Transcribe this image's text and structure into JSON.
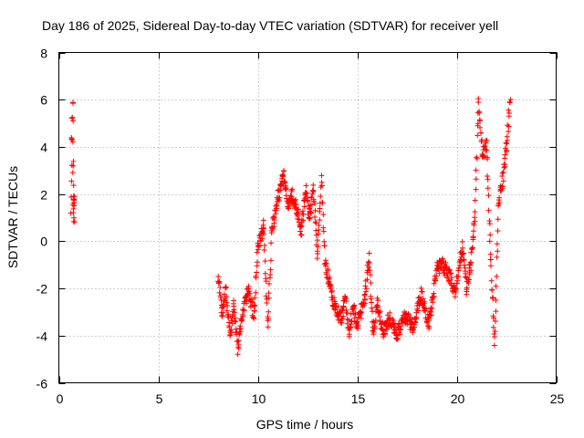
{
  "chart_data": {
    "type": "scatter",
    "title": "Day 186 of 2025, Sidereal Day-to-day VTEC variation (SDTVAR) for receiver yell",
    "xlabel": "GPS time / hours",
    "ylabel": "SDTVAR / TECUs",
    "xlim": [
      0,
      25
    ],
    "ylim": [
      -6,
      8
    ],
    "xticks": [
      0,
      5,
      10,
      15,
      20,
      25
    ],
    "yticks": [
      -6,
      -4,
      -2,
      0,
      2,
      4,
      6,
      8
    ],
    "xtick_labels": [
      "0",
      "5",
      "10",
      "15",
      "20",
      "25"
    ],
    "ytick_labels": [
      "-6",
      "-4",
      "-2",
      "0",
      "2",
      "4",
      "6",
      "8"
    ],
    "grid": true,
    "marker": "+",
    "series_color": "#ff0000",
    "series": [
      {
        "name": "SDTVAR",
        "anchors": [
          [
            0.6,
            1.2
          ],
          [
            0.65,
            4.1
          ],
          [
            0.7,
            5.8
          ],
          [
            0.72,
            2.9
          ],
          [
            0.75,
            1.4
          ],
          [
            8.0,
            -1.5
          ],
          [
            8.2,
            -3.0
          ],
          [
            8.4,
            -2.2
          ],
          [
            8.6,
            -4.0
          ],
          [
            8.8,
            -2.8
          ],
          [
            9.0,
            -4.5
          ],
          [
            9.2,
            -3.2
          ],
          [
            9.5,
            -2.0
          ],
          [
            9.8,
            -3.2
          ],
          [
            10.0,
            -0.2
          ],
          [
            10.3,
            0.6
          ],
          [
            10.5,
            -3.6
          ],
          [
            10.7,
            0.4
          ],
          [
            11.0,
            1.8
          ],
          [
            11.3,
            2.7
          ],
          [
            11.5,
            1.5
          ],
          [
            11.7,
            2.0
          ],
          [
            12.0,
            1.2
          ],
          [
            12.2,
            0.5
          ],
          [
            12.4,
            2.2
          ],
          [
            12.6,
            1.0
          ],
          [
            12.8,
            2.2
          ],
          [
            13.0,
            -0.5
          ],
          [
            13.2,
            2.5
          ],
          [
            13.4,
            -1.0
          ],
          [
            13.6,
            -1.8
          ],
          [
            13.8,
            -2.5
          ],
          [
            14.0,
            -3.0
          ],
          [
            14.2,
            -3.2
          ],
          [
            14.4,
            -2.6
          ],
          [
            14.6,
            -3.8
          ],
          [
            14.8,
            -2.8
          ],
          [
            15.0,
            -3.6
          ],
          [
            15.2,
            -3.0
          ],
          [
            15.4,
            -2.2
          ],
          [
            15.6,
            -0.8
          ],
          [
            15.8,
            -3.8
          ],
          [
            16.0,
            -2.6
          ],
          [
            16.3,
            -3.8
          ],
          [
            16.6,
            -3.3
          ],
          [
            17.0,
            -3.9
          ],
          [
            17.4,
            -3.2
          ],
          [
            17.8,
            -3.6
          ],
          [
            18.2,
            -2.2
          ],
          [
            18.6,
            -3.5
          ],
          [
            19.0,
            -1.2
          ],
          [
            19.3,
            -1.0
          ],
          [
            19.6,
            -1.4
          ],
          [
            19.9,
            -2.2
          ],
          [
            20.1,
            -1.2
          ],
          [
            20.3,
            -0.2
          ],
          [
            20.5,
            -2.0
          ],
          [
            20.7,
            -1.0
          ],
          [
            20.9,
            1.0
          ],
          [
            21.1,
            5.8
          ],
          [
            21.3,
            3.8
          ],
          [
            21.5,
            4.0
          ],
          [
            21.7,
            -0.6
          ],
          [
            21.9,
            -4.2
          ],
          [
            22.1,
            1.5
          ],
          [
            22.3,
            2.5
          ],
          [
            22.5,
            4.0
          ],
          [
            22.7,
            6.2
          ]
        ]
      }
    ]
  }
}
